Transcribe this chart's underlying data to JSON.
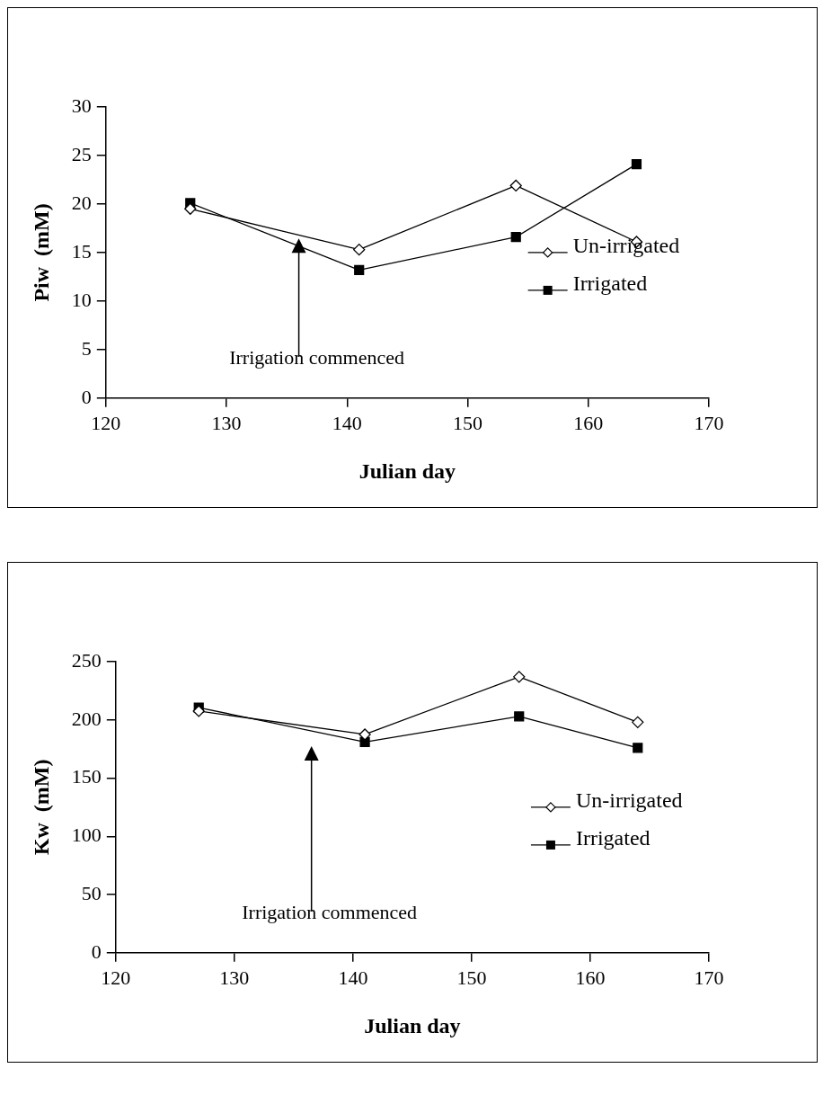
{
  "chart_data": [
    {
      "type": "line",
      "xlabel": "Julian day",
      "ylabel": "Piw  (mM)",
      "x": [
        127,
        141,
        154,
        164
      ],
      "xlim": [
        120,
        170
      ],
      "xticks": [
        120,
        130,
        140,
        150,
        160,
        170
      ],
      "ylim": [
        0,
        30
      ],
      "yticks": [
        0,
        5,
        10,
        15,
        20,
        25,
        30
      ],
      "grid": false,
      "legend": "right",
      "line_style": "solid",
      "series": [
        {
          "name": "Un-irrigated",
          "color": "#000000",
          "marker": "diamond",
          "values": [
            19.5,
            15.3,
            21.9,
            16.1
          ]
        },
        {
          "name": "Irrigated",
          "color": "#000000",
          "marker": "square",
          "values": [
            20.1,
            13.2,
            16.6,
            24.1
          ]
        }
      ],
      "annotations": [
        {
          "text": "Irrigation commenced",
          "x": 136,
          "y": 15.7
        }
      ]
    },
    {
      "type": "line",
      "xlabel": "Julian day",
      "ylabel": "Kw  (mM)",
      "x": [
        127,
        141,
        154,
        164
      ],
      "xlim": [
        120,
        170
      ],
      "xticks": [
        120,
        130,
        140,
        150,
        160,
        170
      ],
      "ylim": [
        0,
        250
      ],
      "yticks": [
        0,
        50,
        100,
        150,
        200,
        250
      ],
      "grid": false,
      "legend": "right",
      "line_style": "solid",
      "series": [
        {
          "name": "Un-irrigated",
          "color": "#000000",
          "marker": "diamond",
          "values": [
            207.6,
            187.5,
            237,
            198
          ]
        },
        {
          "name": "Irrigated",
          "color": "#000000",
          "marker": "square",
          "values": [
            210.6,
            181,
            203,
            176
          ]
        }
      ],
      "annotations": [
        "Irrigation commenced"
      ]
    }
  ]
}
